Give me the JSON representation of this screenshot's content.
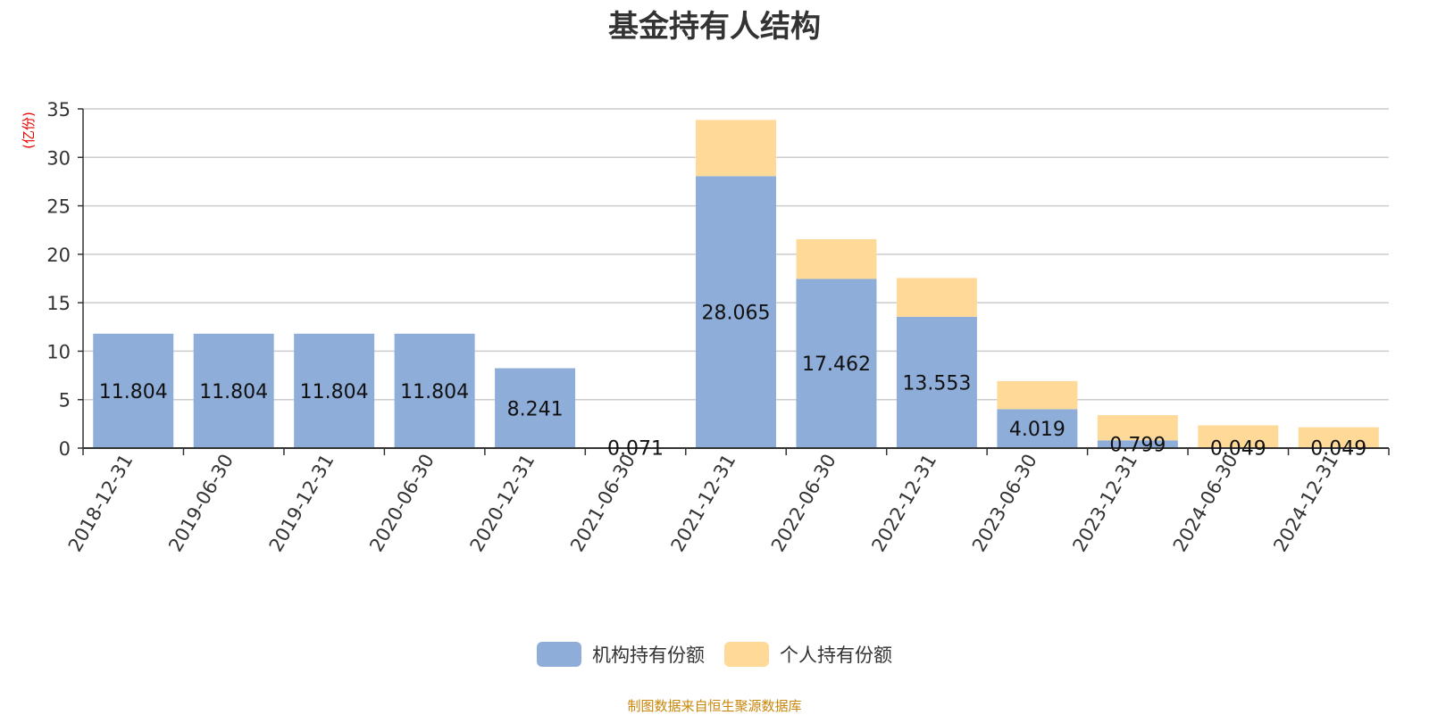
{
  "chart_data": {
    "type": "bar",
    "stacked": true,
    "title": "基金持有人结构",
    "ylabel": "(亿份)",
    "xlabel": "",
    "ylim": [
      0,
      35
    ],
    "yticks": [
      0,
      5,
      10,
      15,
      20,
      25,
      30,
      35
    ],
    "grid": true,
    "legend_position": "bottom",
    "categories": [
      "2018-12-31",
      "2019-06-30",
      "2019-12-31",
      "2020-06-30",
      "2020-12-31",
      "2021-06-30",
      "2021-12-31",
      "2022-06-30",
      "2022-12-31",
      "2023-06-30",
      "2023-12-31",
      "2024-06-30",
      "2024-12-31"
    ],
    "series": [
      {
        "name": "机构持有份额",
        "color": "#8eadd9",
        "values": [
          11.804,
          11.804,
          11.804,
          11.804,
          8.241,
          0.071,
          28.065,
          17.462,
          13.553,
          4.019,
          0.799,
          0.049,
          0.049
        ]
      },
      {
        "name": "个人持有份额",
        "color": "#ffd998",
        "values": [
          0,
          0,
          0,
          0,
          0,
          0,
          5.8,
          4.1,
          4.0,
          2.9,
          2.6,
          2.3,
          2.1
        ]
      }
    ],
    "data_labels": [
      "11.804",
      "11.804",
      "11.804",
      "11.804",
      "8.241",
      "0.071",
      "28.065",
      "17.462",
      "13.553",
      "4.019",
      "0.799",
      "0.049",
      "0.049"
    ]
  },
  "source_note": "制图数据来自恒生聚源数据库"
}
